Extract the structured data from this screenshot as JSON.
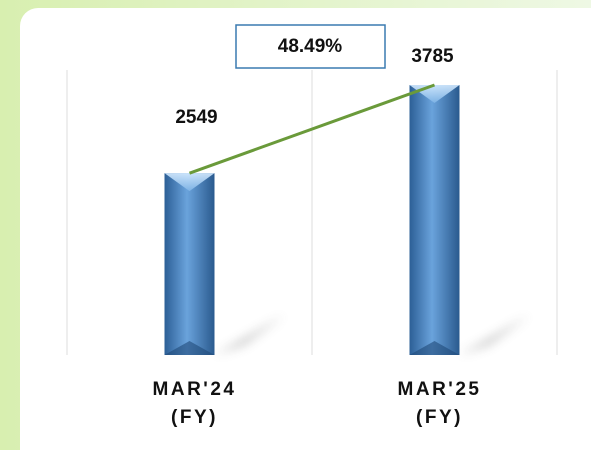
{
  "chart_data": {
    "type": "bar",
    "categories": [
      [
        "MAR'24",
        "(FY)"
      ],
      [
        "MAR'25",
        "(FY)"
      ]
    ],
    "values": [
      2549,
      3785
    ],
    "color": "#4a86c5",
    "line_color": "#6a9a3a",
    "annotation": "48.49%"
  }
}
